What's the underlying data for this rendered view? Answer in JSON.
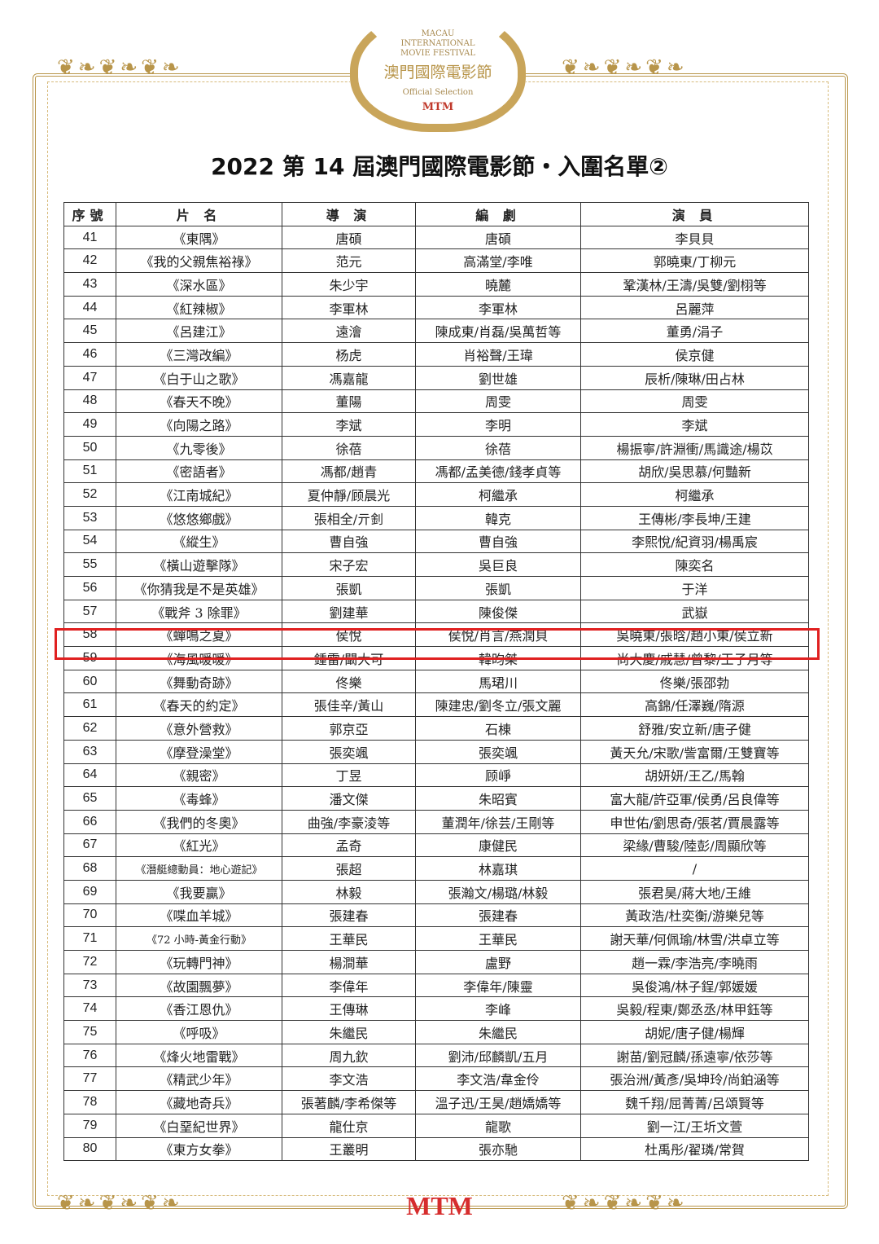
{
  "logo": {
    "line1": "MACAU",
    "line2": "INTERNATIONAL",
    "line3": "MOVIE FESTIVAL",
    "chinese": "澳門國際電影節",
    "selection": "Official Selection",
    "brand": "MTM"
  },
  "title": "2022 第 14 屆澳門國際電影節・入圍名單②",
  "table": {
    "headers": [
      "序號",
      "片 名",
      "導 演",
      "編 劇",
      "演 員"
    ],
    "rows": [
      [
        "41",
        "《東隅》",
        "唐碩",
        "唐碩",
        "李貝貝"
      ],
      [
        "42",
        "《我的父親焦裕祿》",
        "范元",
        "高滿堂/李唯",
        "郭曉東/丁柳元"
      ],
      [
        "43",
        "《深水區》",
        "朱少宇",
        "曉麓",
        "鞏漢林/王濤/吳雙/劉栩等"
      ],
      [
        "44",
        "《紅辣椒》",
        "李軍林",
        "李軍林",
        "呂麗萍"
      ],
      [
        "45",
        "《呂建江》",
        "遠澮",
        "陳成東/肖磊/吳萬哲等",
        "董勇/涓子"
      ],
      [
        "46",
        "《三灣改編》",
        "杨虎",
        "肖裕聲/王瑋",
        "侯京健"
      ],
      [
        "47",
        "《白于山之歌》",
        "馮嘉龍",
        "劉世雄",
        "辰析/陳琳/田占林"
      ],
      [
        "48",
        "《春天不晚》",
        "董陽",
        "周雯",
        "周雯"
      ],
      [
        "49",
        "《向陽之路》",
        "李斌",
        "李明",
        "李斌"
      ],
      [
        "50",
        "《九零後》",
        "徐蓓",
        "徐蓓",
        "楊振寧/許淵衝/馬識途/楊苡"
      ],
      [
        "51",
        "《密語者》",
        "馮都/趙青",
        "馮都/孟美德/錢孝貞等",
        "胡欣/吳思慕/何豔新"
      ],
      [
        "52",
        "《江南城紀》",
        "夏仲靜/顾晨光",
        "柯繼承",
        "柯繼承"
      ],
      [
        "53",
        "《悠悠鄉戲》",
        "張相全/亓釗",
        "韓克",
        "王傳彬/李長坤/王建"
      ],
      [
        "54",
        "《縱生》",
        "曹自強",
        "曹自強",
        "李熙悅/紀資羽/楊禹宸"
      ],
      [
        "55",
        "《橫山遊擊隊》",
        "宋子宏",
        "吳巨良",
        "陳奕名"
      ],
      [
        "56",
        "《你猜我是不是英雄》",
        "張凱",
        "張凱",
        "于洋"
      ],
      [
        "57",
        "《戰斧 3 除罪》",
        "劉建華",
        "陳俊傑",
        "武嶽"
      ],
      [
        "58",
        "《蟬鳴之夏》",
        "侯悅",
        "侯悅/肖言/燕潤貝",
        "吳曉東/張晗/趙小東/侯立新"
      ],
      [
        "59",
        "《海風暖暖》",
        "鍾雷/闞大可",
        "韓昀桀",
        "尚大慶/戚慧/曾黎/王子月等"
      ],
      [
        "60",
        "《舞動奇跡》",
        "佟樂",
        "馬珺川",
        "佟樂/張邵勃"
      ],
      [
        "61",
        "《春天的約定》",
        "張佳辛/黃山",
        "陳建忠/劉冬立/張文麗",
        "高錦/任澤巍/隋源"
      ],
      [
        "62",
        "《意外營救》",
        "郭京亞",
        "石棟",
        "舒雅/安立新/唐子健"
      ],
      [
        "63",
        "《摩登澡堂》",
        "張奕颯",
        "張奕颯",
        "黃天允/宋歌/訾富爾/王雙寶等"
      ],
      [
        "64",
        "《親密》",
        "丁昱",
        "顾崢",
        "胡妍妍/王乙/馬翰"
      ],
      [
        "65",
        "《毒蜂》",
        "潘文傑",
        "朱昭賓",
        "富大龍/許亞軍/侯勇/呂良偉等"
      ],
      [
        "66",
        "《我們的冬奧》",
        "曲強/李豪淩等",
        "董潤年/徐芸/王剛等",
        "申世佑/劉思奇/張茗/賈晨露等"
      ],
      [
        "67",
        "《紅光》",
        "孟奇",
        "康健民",
        "梁緣/曹駿/陸彭/周顯欣等"
      ],
      [
        "68",
        "《潛艇總動員：地心遊記》",
        "張超",
        "林嘉琪",
        "/"
      ],
      [
        "69",
        "《我要贏》",
        "林毅",
        "張瀚文/楊璐/林毅",
        "張君昊/蔣大地/王維"
      ],
      [
        "70",
        "《喋血羊城》",
        "張建春",
        "張建春",
        "黃政浩/杜奕衡/游樂兒等"
      ],
      [
        "71",
        "《72 小時-黃金行動》",
        "王華民",
        "王華民",
        "謝天華/何佩瑜/林雪/洪卓立等"
      ],
      [
        "72",
        "《玩轉門神》",
        "楊澗華",
        "盧野",
        "趙一霖/李浩亮/李曉雨"
      ],
      [
        "73",
        "《故園飄夢》",
        "李偉年",
        "李偉年/陳靈",
        "吳俊鴻/林子鋥/郭媛媛"
      ],
      [
        "74",
        "《香江恩仇》",
        "王傳琳",
        "李峰",
        "吳毅/程東/鄭丞丞/林甲鈺等"
      ],
      [
        "75",
        "《呼吸》",
        "朱繼民",
        "朱繼民",
        "胡妮/唐子健/楊輝"
      ],
      [
        "76",
        "《烽火地雷戰》",
        "周九欽",
        "劉沛/邱麟凱/五月",
        "謝苗/劉冠麟/孫遠寧/依莎等"
      ],
      [
        "77",
        "《精武少年》",
        "李文浩",
        "李文浩/韋金伶",
        "張治洲/黃彥/吳坤玲/尚鉑涵等"
      ],
      [
        "78",
        "《藏地奇兵》",
        "張著麟/李希傑等",
        "溫子迅/王昊/趙嬌嬌等",
        "魏千翔/屈菁菁/呂頌賢等"
      ],
      [
        "79",
        "《白堊紀世界》",
        "龍仕京",
        "龍歌",
        "劉一江/王圻文萱"
      ],
      [
        "80",
        "《東方女拳》",
        "王叢明",
        "張亦馳",
        "杜禹彤/翟璘/常賀"
      ]
    ],
    "highlighted_row": "58"
  },
  "footer": {
    "brand": "MTM"
  },
  "colors": {
    "gold": "#b8954a",
    "highlight": "#e02020",
    "brand_red": "#d62d2d"
  }
}
